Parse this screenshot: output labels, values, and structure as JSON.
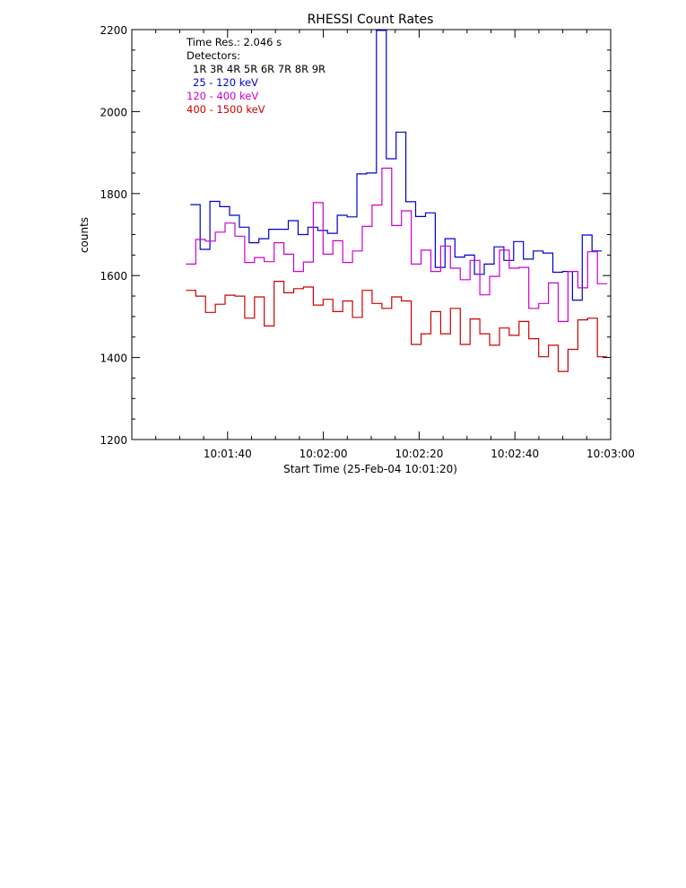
{
  "chart_data": {
    "type": "line",
    "title": "RHESSI Count Rates",
    "xlabel": "Start Time (25-Feb-04 10:01:20)",
    "ylabel": "counts",
    "xlim": [
      0,
      100
    ],
    "ylim": [
      1200,
      2200
    ],
    "x_ticks": [
      20,
      40,
      60,
      80,
      100
    ],
    "x_tick_labels": [
      "10:01:40",
      "10:02:00",
      "10:02:20",
      "10:02:40",
      "10:03:00"
    ],
    "y_ticks": [
      1200,
      1400,
      1600,
      1800,
      2000,
      2200
    ],
    "y_tick_labels": [
      "1200",
      "1400",
      "1600",
      "1800",
      "2000",
      "2200"
    ],
    "x_unit": "seconds after 10:01:20",
    "annotations": {
      "time_res": "Time Res.: 2.046 s",
      "detectors_title": "Detectors:",
      "detectors": "1R 3R 4R 5R 6R 7R 8R 9R"
    },
    "series": [
      {
        "name": "25 - 120 keV",
        "color": "#0000cc",
        "values": [
          1773,
          1664,
          1781,
          1768,
          1747,
          1718,
          1680,
          1690,
          1713,
          1713,
          1734,
          1700,
          1718,
          1710,
          1703,
          1747,
          1743,
          1848,
          1850,
          2198,
          1885,
          1950,
          1780,
          1744,
          1753,
          1620,
          1690,
          1645,
          1650,
          1603,
          1628,
          1670,
          1637,
          1683,
          1640,
          1660,
          1655,
          1608,
          1610,
          1540,
          1699,
          1660
        ]
      },
      {
        "name": "120 - 400 keV",
        "color": "#cc00cc",
        "values": [
          1628,
          1688,
          1684,
          1706,
          1728,
          1696,
          1632,
          1644,
          1634,
          1680,
          1652,
          1610,
          1633,
          1778,
          1652,
          1685,
          1632,
          1660,
          1720,
          1772,
          1862,
          1722,
          1758,
          1628,
          1662,
          1610,
          1672,
          1618,
          1590,
          1637,
          1553,
          1598,
          1662,
          1618,
          1620,
          1520,
          1532,
          1582,
          1488,
          1610,
          1570,
          1658,
          1580
        ]
      },
      {
        "name": "400 - 1500 keV",
        "color": "#cc0000",
        "values": [
          1564,
          1550,
          1510,
          1530,
          1552,
          1550,
          1496,
          1548,
          1477,
          1586,
          1558,
          1568,
          1572,
          1528,
          1542,
          1512,
          1538,
          1498,
          1564,
          1532,
          1520,
          1548,
          1538,
          1432,
          1458,
          1512,
          1458,
          1520,
          1432,
          1494,
          1458,
          1430,
          1472,
          1454,
          1488,
          1446,
          1402,
          1430,
          1366,
          1420,
          1492,
          1496,
          1402
        ]
      }
    ],
    "start_x": 11.3,
    "bin_width": 2.046,
    "axis_color": "#000000",
    "background": "#ffffff"
  }
}
